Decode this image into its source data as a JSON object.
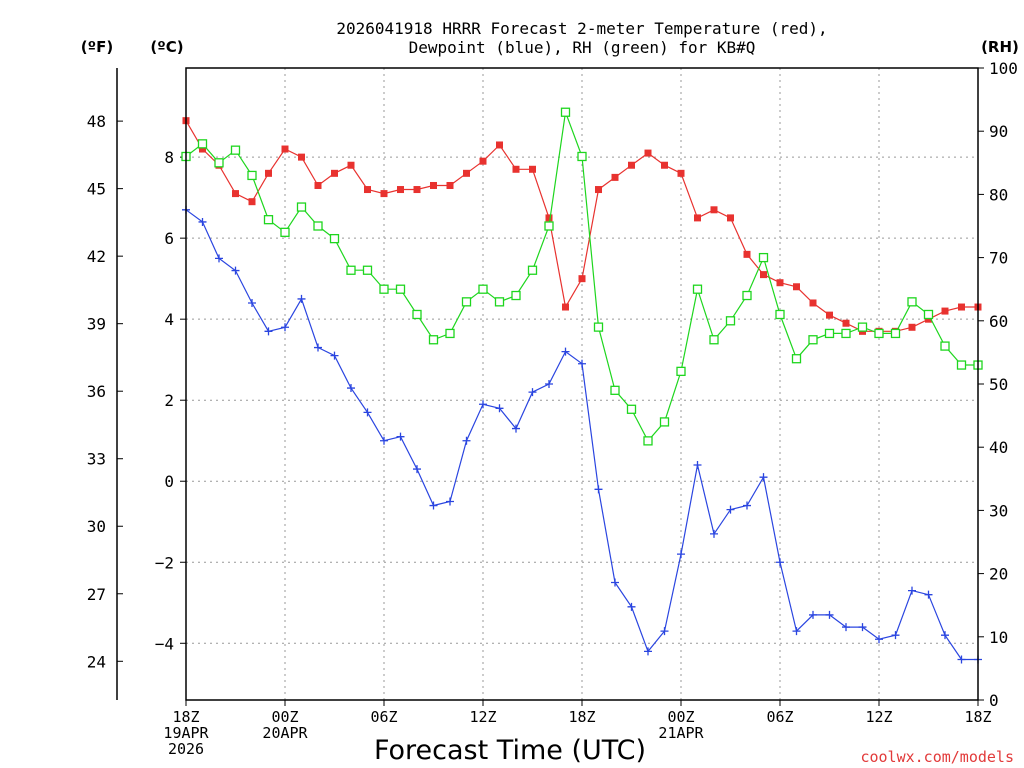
{
  "chart_data": {
    "type": "line",
    "title": [
      "2026041918 HRRR Forecast 2-meter Temperature (red),",
      "Dewpoint (blue), RH (green) for KB#Q"
    ],
    "xlabel": "Forecast Time (UTC)",
    "watermark": "coolwx.com/models",
    "units": {
      "fahrenheit": "(ºF)",
      "celsius": "(ºC)",
      "rh": "(RH)"
    },
    "x_hours": [
      0,
      1,
      2,
      3,
      4,
      5,
      6,
      7,
      8,
      9,
      10,
      11,
      12,
      13,
      14,
      15,
      16,
      17,
      18,
      19,
      20,
      21,
      22,
      23,
      24,
      25,
      26,
      27,
      28,
      29,
      30,
      31,
      32,
      33,
      34,
      35,
      36,
      37,
      38,
      39,
      40,
      41,
      42,
      43,
      44,
      45,
      46,
      47,
      48
    ],
    "x_ticks": [
      {
        "hour": 0,
        "lines": [
          "18Z",
          "19APR",
          "2026"
        ]
      },
      {
        "hour": 6,
        "lines": [
          "00Z",
          "20APR"
        ]
      },
      {
        "hour": 12,
        "lines": [
          "06Z"
        ]
      },
      {
        "hour": 18,
        "lines": [
          "12Z"
        ]
      },
      {
        "hour": 24,
        "lines": [
          "18Z"
        ]
      },
      {
        "hour": 30,
        "lines": [
          "00Z",
          "21APR"
        ]
      },
      {
        "hour": 36,
        "lines": [
          "06Z"
        ]
      },
      {
        "hour": 42,
        "lines": [
          "12Z"
        ]
      },
      {
        "hour": 48,
        "lines": [
          "18Z"
        ]
      }
    ],
    "ylim_c": [
      -5.4,
      10.2
    ],
    "ylim_rh": [
      0,
      100
    ],
    "y_ticks_c": [
      -4,
      -2,
      0,
      2,
      4,
      6,
      8
    ],
    "y_ticks_f": [
      24,
      27,
      30,
      33,
      36,
      39,
      42,
      45,
      48
    ],
    "y_ticks_rh": [
      0,
      10,
      20,
      30,
      40,
      50,
      60,
      70,
      80,
      90,
      100
    ],
    "series": [
      {
        "name": "Temperature (°C)",
        "axis": "c",
        "color": "#e8322f",
        "marker": "filled-square",
        "values": [
          8.9,
          8.2,
          7.8,
          7.1,
          6.9,
          7.6,
          8.2,
          8.0,
          7.3,
          7.6,
          7.8,
          7.2,
          7.1,
          7.2,
          7.2,
          7.3,
          7.3,
          7.6,
          7.9,
          8.3,
          7.7,
          7.7,
          6.5,
          4.3,
          5.0,
          7.2,
          7.5,
          7.8,
          8.1,
          7.8,
          7.6,
          6.5,
          6.7,
          6.5,
          5.6,
          5.1,
          4.9,
          4.8,
          4.4,
          4.1,
          3.9,
          3.7,
          3.7,
          3.7,
          3.8,
          4.0,
          4.2,
          4.3,
          4.3
        ]
      },
      {
        "name": "Dewpoint (°C)",
        "axis": "c",
        "color": "#2a45e0",
        "marker": "plus",
        "values": [
          6.7,
          6.4,
          5.5,
          5.2,
          4.4,
          3.7,
          3.8,
          4.5,
          3.3,
          3.1,
          2.3,
          1.7,
          1.0,
          1.1,
          0.3,
          -0.6,
          -0.5,
          1.0,
          1.9,
          1.8,
          1.3,
          2.2,
          2.4,
          3.2,
          2.9,
          -0.2,
          -2.5,
          -3.1,
          -4.2,
          -3.7,
          -1.8,
          0.4,
          -1.3,
          -0.7,
          -0.6,
          0.1,
          -2.0,
          -3.7,
          -3.3,
          -3.3,
          -3.6,
          -3.6,
          -3.9,
          -3.8,
          -2.7,
          -2.8,
          -3.8,
          -4.4,
          -4.4
        ]
      },
      {
        "name": "RH (%)",
        "axis": "rh",
        "color": "#1ed61e",
        "marker": "open-square",
        "values": [
          86,
          88,
          85,
          87,
          83,
          76,
          74,
          78,
          75,
          73,
          68,
          68,
          65,
          65,
          61,
          57,
          58,
          63,
          65,
          63,
          64,
          68,
          75,
          93,
          86,
          59,
          49,
          46,
          41,
          44,
          52,
          65,
          57,
          60,
          64,
          70,
          61,
          54,
          57,
          58,
          58,
          59,
          58,
          58,
          63,
          61,
          56,
          53,
          53
        ]
      }
    ]
  }
}
